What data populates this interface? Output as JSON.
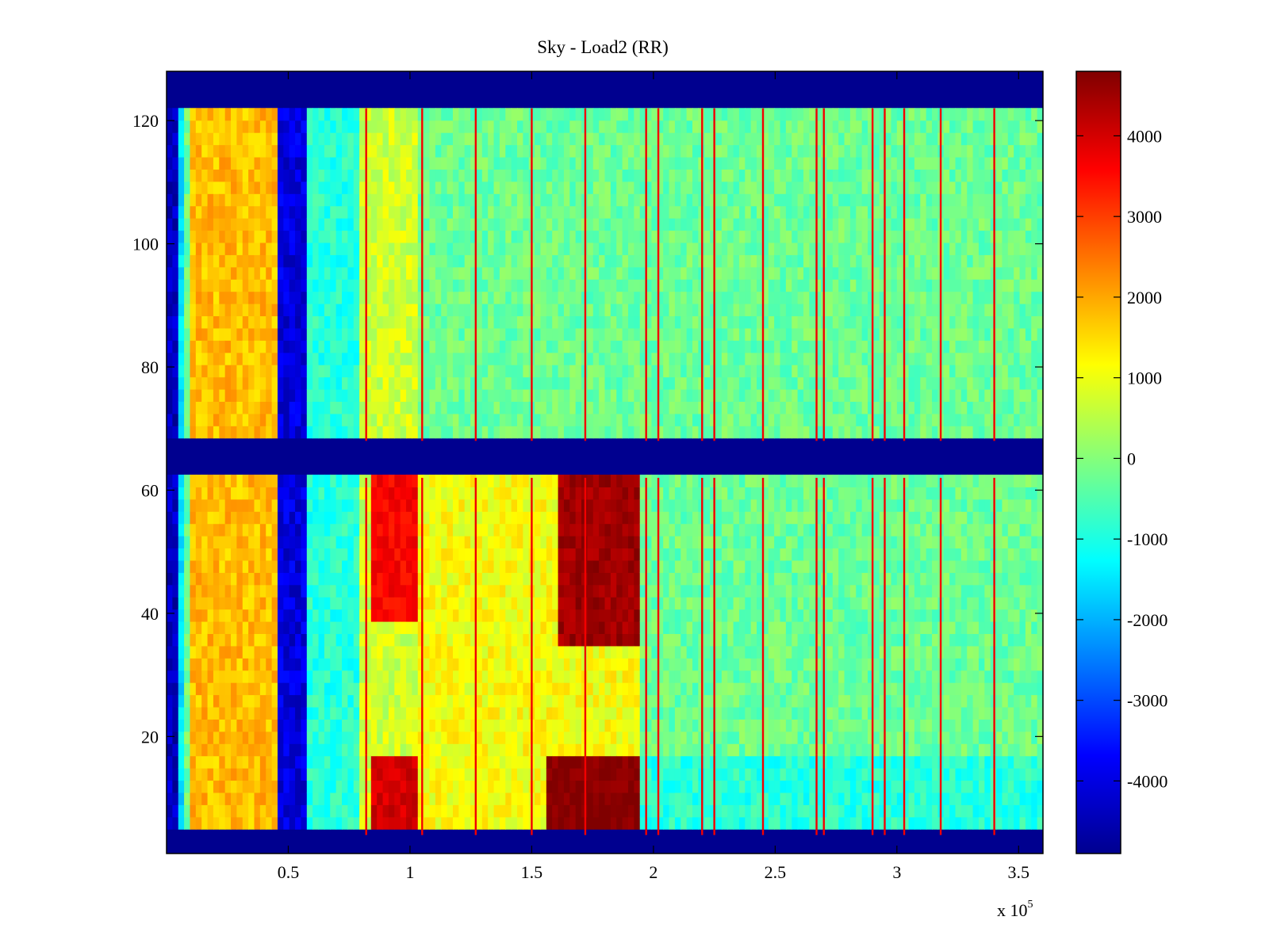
{
  "chart_data": {
    "type": "heatmap",
    "title": "Sky - Load2 (RR)",
    "xlabel": "",
    "ylabel": "",
    "x_multiplier_label": "x 10",
    "x_multiplier_exponent": "5",
    "xlim": [
      0.0,
      3.6
    ],
    "ylim": [
      1,
      128
    ],
    "x_ticks": [
      0.5,
      1,
      1.5,
      2,
      2.5,
      3,
      3.5
    ],
    "x_tick_labels": [
      "0.5",
      "1",
      "1.5",
      "2",
      "2.5",
      "3",
      "3.5"
    ],
    "y_ticks": [
      20,
      40,
      60,
      80,
      100,
      120
    ],
    "y_tick_labels": [
      "20",
      "40",
      "60",
      "80",
      "100",
      "120"
    ],
    "colormap": "jet",
    "clim": [
      -4900,
      4800
    ],
    "colorbar_ticks": [
      4000,
      3000,
      2000,
      1000,
      0,
      -1000,
      -2000,
      -3000,
      -4000
    ],
    "colorbar_tick_labels": [
      "4000",
      "3000",
      "2000",
      "1000",
      "0",
      "-1000",
      "-2000",
      "-3000",
      "-4000"
    ],
    "masked_channel_ranges": [
      [
        1,
        4
      ],
      [
        62,
        68
      ],
      [
        122,
        128
      ]
    ],
    "channel_groups": [
      [
        4,
        17
      ],
      [
        17,
        62
      ],
      [
        68,
        122
      ]
    ],
    "regions": [
      {
        "x": [
          0.0,
          0.05
        ],
        "value": -4300
      },
      {
        "x": [
          0.1,
          0.45
        ],
        "value": 1800
      },
      {
        "x": [
          0.45,
          0.57
        ],
        "value": -4000
      },
      {
        "x": [
          0.57,
          0.8
        ],
        "value": -900
      },
      {
        "x": [
          0.8,
          1.03
        ],
        "value": 700
      },
      {
        "x": [
          1.03,
          3.6
        ],
        "value": -250
      }
    ],
    "excess_events": [
      {
        "x": [
          0.85,
          1.03
        ],
        "channels": [
          4,
          17
        ],
        "value": 4000
      },
      {
        "x": [
          1.55,
          1.95
        ],
        "channels": [
          4,
          17
        ],
        "value": 4800
      },
      {
        "x": [
          0.85,
          1.03
        ],
        "channels": [
          38,
          62
        ],
        "value": 3600
      },
      {
        "x": [
          1.6,
          1.95
        ],
        "channels": [
          34,
          62
        ],
        "value": 4500
      }
    ],
    "spike_lines_x": [
      0.82,
      1.05,
      1.27,
      1.5,
      1.72,
      1.97,
      2.02,
      2.2,
      2.25,
      2.45,
      2.67,
      2.7,
      2.9,
      2.95,
      3.03,
      3.18,
      3.4
    ]
  }
}
